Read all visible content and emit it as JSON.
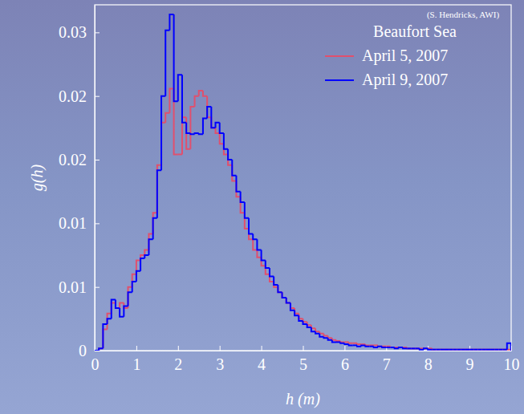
{
  "chart_data": {
    "type": "histogram",
    "line_style": "step",
    "x_label": "h (m)",
    "y_label": "g(h)",
    "annotations": [
      "(S. Hendricks, AWI)"
    ],
    "legend_title": "Beaufort Sea",
    "legend": "upper right",
    "xlim": [
      0,
      10
    ],
    "xticks": [
      0,
      1,
      2,
      3,
      4,
      5,
      6,
      7,
      8,
      9,
      10
    ],
    "ylim": [
      0,
      0.0326
    ],
    "yticks": [
      0,
      {
        "value": 0.006,
        "label": "0.01"
      },
      {
        "value": 0.012,
        "label": "0.01"
      },
      {
        "value": 0.018,
        "label": "0.02"
      },
      {
        "value": 0.024,
        "label": "0.02"
      },
      0.03
    ],
    "bins": [
      0,
      0.1,
      0.2,
      0.3,
      0.4,
      0.5,
      0.6,
      0.7,
      0.8,
      0.9,
      1,
      1.1,
      1.2,
      1.3,
      1.4,
      1.5,
      1.6,
      1.7,
      1.8,
      1.9,
      2,
      2.1,
      2.2,
      2.3,
      2.4,
      2.5,
      2.6,
      2.7,
      2.8,
      2.9,
      3,
      3.1,
      3.2,
      3.3,
      3.4,
      3.5,
      3.6,
      3.7,
      3.8,
      3.9,
      4,
      4.1,
      4.2,
      4.3,
      4.4,
      4.5,
      4.6,
      4.7,
      4.8,
      4.9,
      5,
      5.1,
      5.2,
      5.3,
      5.4,
      5.5,
      5.6,
      5.7,
      5.8,
      5.9,
      6,
      6.1,
      6.2,
      6.3,
      6.4,
      6.5,
      6.6,
      6.7,
      6.8,
      6.9,
      7,
      7.1,
      7.2,
      7.3,
      7.4,
      7.5,
      7.6,
      7.7,
      7.8,
      7.9,
      8,
      8.1,
      8.2,
      8.3,
      8.4,
      8.5,
      8.6,
      8.7,
      8.8,
      8.9,
      9,
      9.1,
      9.2,
      9.3,
      9.4,
      9.5,
      9.6,
      9.7,
      9.8,
      9.9,
      10
    ],
    "series": [
      {
        "name": "April 5, 2007",
        "color": "#e0506e",
        "values": [
          0,
          0.0002,
          0.002,
          0.0035,
          0.0045,
          0.004,
          0.0045,
          0.004,
          0.006,
          0.0072,
          0.0085,
          0.009,
          0.0095,
          0.011,
          0.013,
          0.0175,
          0.0215,
          0.0224,
          0.0247,
          0.0185,
          0.0185,
          0.022,
          0.019,
          0.023,
          0.024,
          0.0245,
          0.024,
          0.022,
          0.021,
          0.0205,
          0.0195,
          0.0185,
          0.0175,
          0.016,
          0.0145,
          0.013,
          0.0115,
          0.0105,
          0.0095,
          0.0088,
          0.008,
          0.0072,
          0.0065,
          0.006,
          0.0055,
          0.005,
          0.0045,
          0.004,
          0.0035,
          0.003,
          0.0027,
          0.0024,
          0.0021,
          0.0018,
          0.0016,
          0.0014,
          0.0012,
          0.001,
          0.0009,
          0.0008,
          0.0008,
          0.0007,
          0.0007,
          0.0006,
          0.0006,
          0.0005,
          0.0005,
          0.0005,
          0.0004,
          0.0004,
          0.0004,
          0.0003,
          0.0003,
          0.0003,
          0.0003,
          0.0002,
          0.0002,
          0.0002,
          0.0002,
          0.0002,
          0.0002,
          0.0001,
          0.0001,
          0.0001,
          0.0001,
          0.0001,
          0.0001,
          0.0001,
          0.0001,
          0.0001,
          0.0001,
          0.0001,
          0.0001,
          0.0001,
          0.0001,
          0.0001,
          0.0001,
          0.0001,
          0.0001,
          0.0001
        ]
      },
      {
        "name": "April 9, 2007",
        "color": "#0000ff",
        "values": [
          0,
          0.0002,
          0.0025,
          0.003,
          0.0048,
          0.004,
          0.0032,
          0.0042,
          0.0055,
          0.0065,
          0.0075,
          0.0087,
          0.009,
          0.0105,
          0.0125,
          0.017,
          0.024,
          0.0302,
          0.0317,
          0.0235,
          0.026,
          0.0215,
          0.0205,
          0.0204,
          0.0205,
          0.0204,
          0.0219,
          0.023,
          0.021,
          0.0215,
          0.0205,
          0.019,
          0.018,
          0.0165,
          0.015,
          0.014,
          0.0125,
          0.011,
          0.0105,
          0.0095,
          0.0085,
          0.0078,
          0.007,
          0.0062,
          0.0055,
          0.005,
          0.0045,
          0.0038,
          0.0033,
          0.0028,
          0.0025,
          0.0022,
          0.0018,
          0.0016,
          0.0013,
          0.0012,
          0.001,
          0.0008,
          0.0008,
          0.0007,
          0.0006,
          0.0005,
          0.0005,
          0.0004,
          0.0005,
          0.0004,
          0.0004,
          0.0003,
          0.0004,
          0.0003,
          0.0003,
          0.0003,
          0.0002,
          0.0003,
          0.0002,
          0.0002,
          0.0002,
          0.0002,
          0.0001,
          0.0002,
          0.0001,
          0.0001,
          0.0001,
          0.0001,
          0.0001,
          0.0001,
          0.0001,
          0.0001,
          0.0001,
          0.0001,
          0.0001,
          0.0001,
          0.0001,
          0.0001,
          0.0001,
          0.0001,
          0.0001,
          0.0001,
          0.0001,
          0.0007
        ]
      }
    ]
  }
}
